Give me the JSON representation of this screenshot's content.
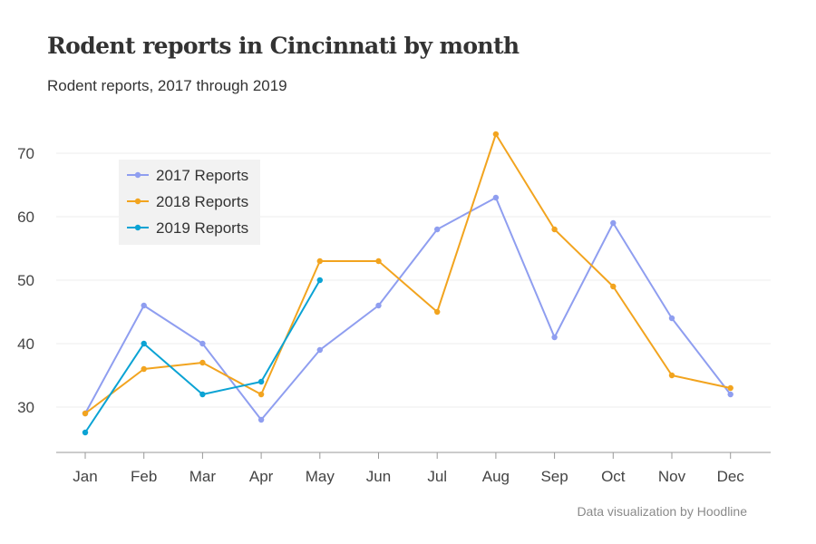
{
  "header": {
    "title": "Rodent reports in Cincinnati by month",
    "subtitle": "Rodent reports, 2017 through 2019"
  },
  "footer": {
    "credit": "Data visualization by Hoodline"
  },
  "chart_data": {
    "type": "line",
    "title": "Rodent reports in Cincinnati by month",
    "subtitle": "Rodent reports, 2017 through 2019",
    "xlabel": "",
    "ylabel": "",
    "categories": [
      "Jan",
      "Feb",
      "Mar",
      "Apr",
      "May",
      "Jun",
      "Jul",
      "Aug",
      "Sep",
      "Oct",
      "Nov",
      "Dec"
    ],
    "y_ticks": [
      30,
      40,
      50,
      60,
      70
    ],
    "ylim": [
      22.5,
      76
    ],
    "grid": true,
    "legend_position": "top-left",
    "series": [
      {
        "name": "2017 Reports",
        "color": "#8f9ef0",
        "values": [
          29,
          46,
          40,
          28,
          39,
          46,
          58,
          63,
          41,
          59,
          44,
          32
        ]
      },
      {
        "name": "2018 Reports",
        "color": "#f2a41f",
        "values": [
          29,
          36,
          37,
          32,
          53,
          53,
          45,
          73,
          58,
          49,
          35,
          33
        ]
      },
      {
        "name": "2019 Reports",
        "color": "#0ba3d4",
        "values": [
          26,
          40,
          32,
          34,
          50,
          null,
          null,
          null,
          null,
          null,
          null,
          null
        ]
      }
    ]
  }
}
